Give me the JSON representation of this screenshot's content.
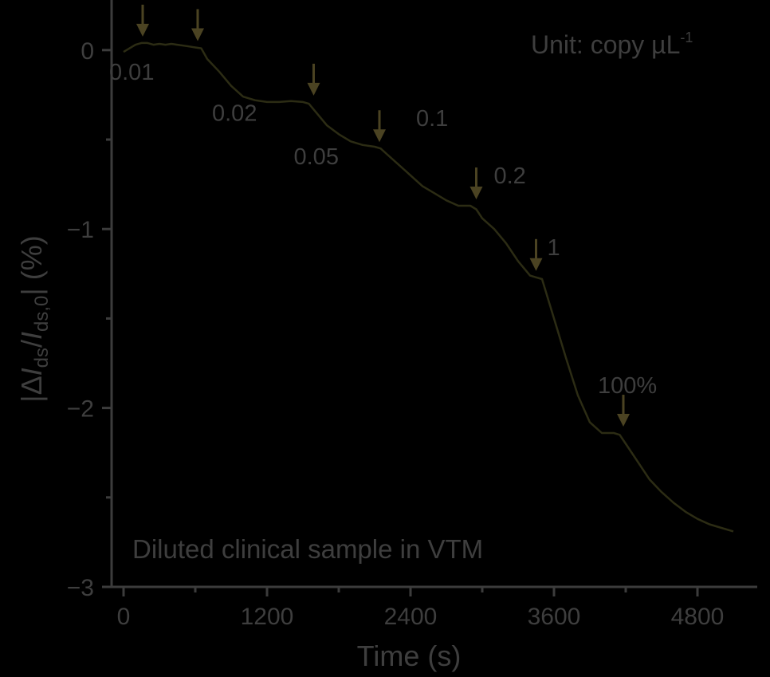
{
  "chart_data": {
    "type": "line",
    "xlabel": "Time (s)",
    "ylabel": "|ΔIds/Ids,0| (%)",
    "xlim": [
      -100,
      5300
    ],
    "ylim": [
      -3,
      0.28
    ],
    "xticks": [
      0,
      1200,
      2400,
      3600,
      4800
    ],
    "xtick_labels": [
      "0",
      "1200",
      "2400",
      "3600",
      "4800"
    ],
    "yticks": [
      0,
      -1,
      -2,
      -3
    ],
    "ytick_labels": [
      "0",
      "−1",
      "−2",
      "−3"
    ],
    "unit_label": "Unit: copy µL",
    "unit_superscript": "-1",
    "note": "Diluted clinical sample in VTM",
    "colors": {
      "trace": "#2c2c14",
      "arrow": "#4b4322",
      "text": "#3e3e3e",
      "axis": "#3c3c3c"
    },
    "series": [
      {
        "x": [
          0,
          50,
          100,
          150,
          200,
          250,
          300,
          350,
          400,
          450,
          500,
          550,
          600,
          650,
          700,
          800,
          900,
          1000,
          1100,
          1200,
          1300,
          1400,
          1500,
          1550,
          1600,
          1650,
          1700,
          1800,
          1900,
          2000,
          2100,
          2150,
          2200,
          2300,
          2400,
          2500,
          2600,
          2700,
          2800,
          2900,
          2950,
          3000,
          3100,
          3200,
          3300,
          3400,
          3450,
          3500,
          3600,
          3700,
          3800,
          3900,
          4000,
          4100,
          4150,
          4200,
          4300,
          4400,
          4500,
          4600,
          4700,
          4800,
          4900,
          5000,
          5100
        ],
        "y": [
          -0.01,
          0.01,
          0.03,
          0.04,
          0.04,
          0.03,
          0.035,
          0.03,
          0.035,
          0.03,
          0.025,
          0.02,
          0.015,
          0.01,
          -0.05,
          -0.12,
          -0.2,
          -0.26,
          -0.28,
          -0.29,
          -0.29,
          -0.285,
          -0.29,
          -0.3,
          -0.34,
          -0.38,
          -0.42,
          -0.47,
          -0.51,
          -0.53,
          -0.54,
          -0.55,
          -0.58,
          -0.64,
          -0.7,
          -0.76,
          -0.8,
          -0.84,
          -0.87,
          -0.87,
          -0.89,
          -0.94,
          -1.0,
          -1.08,
          -1.18,
          -1.26,
          -1.27,
          -1.28,
          -1.5,
          -1.72,
          -1.93,
          -2.08,
          -2.14,
          -2.14,
          -2.15,
          -2.2,
          -2.3,
          -2.4,
          -2.47,
          -2.53,
          -2.58,
          -2.62,
          -2.65,
          -2.67,
          -2.69
        ]
      }
    ],
    "annotations": [
      {
        "label": "0.01",
        "x": 160,
        "y": 0.04
      },
      {
        "label": "0.02",
        "x": 620,
        "y": 0.015
      },
      {
        "label": "0.05",
        "x": 1590,
        "y": -0.29
      },
      {
        "label": "0.1",
        "x": 2140,
        "y": -0.55
      },
      {
        "label": "0.2",
        "x": 2950,
        "y": -0.87
      },
      {
        "label": "1",
        "x": 3450,
        "y": -1.27
      },
      {
        "label": "100%",
        "x": 4180,
        "y": -2.14
      }
    ]
  }
}
